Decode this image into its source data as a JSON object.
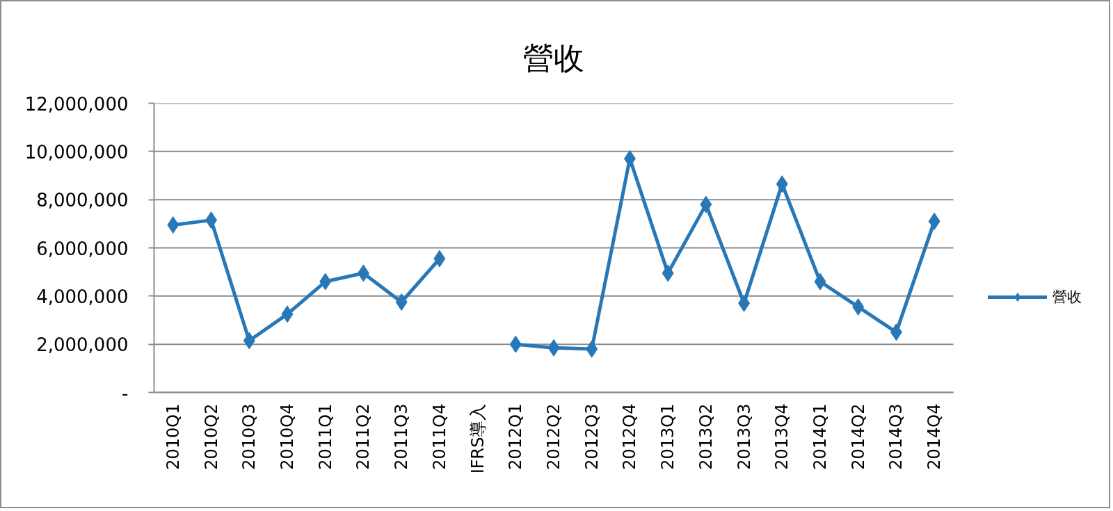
{
  "chart_data": {
    "type": "line",
    "title": "營收",
    "categories": [
      "2010Q1",
      "2010Q2",
      "2010Q3",
      "2010Q4",
      "2011Q1",
      "2011Q2",
      "2011Q3",
      "2011Q4",
      "IFRS導入",
      "2012Q1",
      "2012Q2",
      "2012Q3",
      "2012Q4",
      "2013Q1",
      "2013Q2",
      "2013Q3",
      "2013Q4",
      "2014Q1",
      "2014Q2",
      "2014Q3",
      "2014Q4"
    ],
    "series": [
      {
        "name": "營收",
        "color": "#2878b8",
        "values": [
          6950000,
          7150000,
          2150000,
          3250000,
          4600000,
          4950000,
          3750000,
          5550000,
          null,
          2000000,
          1850000,
          1800000,
          9700000,
          4950000,
          7800000,
          3700000,
          8650000,
          4600000,
          3550000,
          2500000,
          7100000
        ]
      }
    ],
    "ylim": [
      0,
      12000000
    ],
    "yticks": [
      {
        "value": 0,
        "label": "-"
      },
      {
        "value": 2000000,
        "label": "2,000,000"
      },
      {
        "value": 4000000,
        "label": "4,000,000"
      },
      {
        "value": 6000000,
        "label": "6,000,000"
      },
      {
        "value": 8000000,
        "label": "8,000,000"
      },
      {
        "value": 10000000,
        "label": "10,000,000"
      },
      {
        "value": 12000000,
        "label": "12,000,000"
      }
    ],
    "grid": "y",
    "legend": "right",
    "marker": "diamond",
    "line_style": "solid"
  }
}
